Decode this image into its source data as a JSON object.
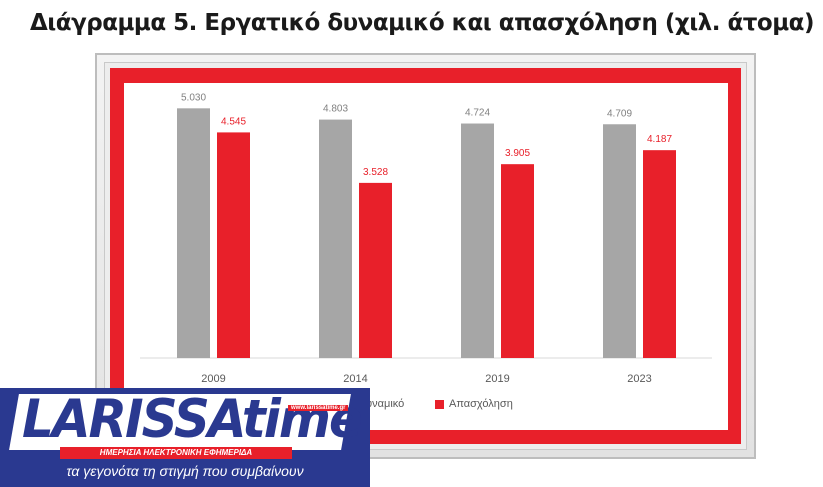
{
  "page_title": "Διάγραμμα 5. Εργατικό δυναμικό και απασχόληση (χιλ. άτομα)",
  "colors": {
    "frame_red": "#e8202a",
    "series_labor": "#a6a6a6",
    "series_employment": "#e8202a",
    "logo_blue": "#2a3990"
  },
  "chart_data": {
    "type": "bar",
    "categories": [
      "2009",
      "2014",
      "2019",
      "2023"
    ],
    "series": [
      {
        "name": "Εργατικό δυναμικό",
        "values": [
          5030,
          4803,
          4724,
          4709
        ],
        "data_labels": [
          "5.030",
          "4.803",
          "4.724",
          "4.709"
        ],
        "color": "#a6a6a6",
        "label_color": "#808080"
      },
      {
        "name": "Απασχόληση",
        "values": [
          4545,
          3528,
          3905,
          4187
        ],
        "data_labels": [
          "4.545",
          "3.528",
          "3.905",
          "4.187"
        ],
        "color": "#e8202a",
        "label_color": "#e8202a"
      }
    ],
    "ylim": [
      0,
      5500
    ],
    "grid": false,
    "legend": "bottom",
    "title": "",
    "xlabel": "",
    "ylabel": ""
  },
  "legend_visible": {
    "labor_partial": "δυναμικό",
    "employment": "Απασχόληση"
  },
  "logo": {
    "name": "LARISSAtime",
    "url": "www.larissatime.gr",
    "tagline": "ΗΜΕΡΗΣΙΑ ΗΛΕΚΤΡΟΝΙΚΗ ΕΦΗΜΕΡΙΔΑ",
    "slogan": "τα γεγονότα τη στιγμή που συμβαίνουν"
  }
}
